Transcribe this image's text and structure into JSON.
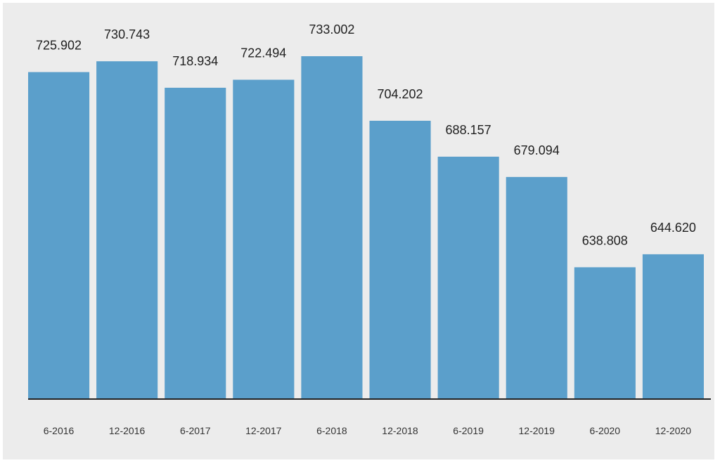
{
  "chart_data": {
    "type": "bar",
    "categories": [
      "6-2016",
      "12-2016",
      "6-2017",
      "12-2017",
      "6-2018",
      "12-2018",
      "6-2019",
      "12-2019",
      "6-2020",
      "12-2020"
    ],
    "values": [
      725902,
      730743,
      718934,
      722494,
      733002,
      704202,
      688157,
      679094,
      638808,
      644620
    ],
    "value_labels": [
      "725.902",
      "730.743",
      "718.934",
      "722.494",
      "733.002",
      "704.202",
      "688.157",
      "679.094",
      "638.808",
      "644.620"
    ],
    "title": "",
    "xlabel": "",
    "ylabel": "",
    "ylim": [
      0,
      800000
    ],
    "grid": false,
    "legend": "none",
    "colors": {
      "bar": "#5b9fcb",
      "baseline": "#222222",
      "background": "#ececec"
    }
  }
}
